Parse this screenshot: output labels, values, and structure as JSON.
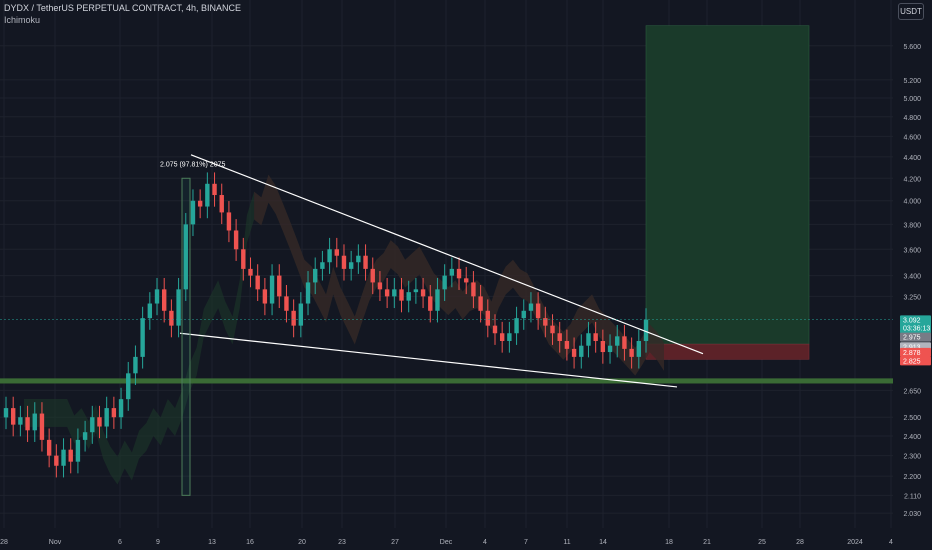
{
  "header": {
    "symbol": "DYDX / TetherUS PERPETUAL CONTRACT, 4h, BINANCE",
    "indicator": "Ichimoku",
    "currency": "USDT"
  },
  "colors": {
    "bg": "#131722",
    "up": "#26a69a",
    "down": "#ef5350",
    "grid": "#1e222d",
    "text": "#b2b5be",
    "support": "#3a6b35",
    "target": "#1a3a2a",
    "stop": "#5c2228",
    "cloudGreen": "#1d3a2a",
    "cloudRed": "#4a2026"
  },
  "chart_data": {
    "type": "candlestick",
    "y_scale": "log",
    "ylim": [
      2.0,
      6.0
    ],
    "y_ticks": [
      "5.600",
      "5.200",
      "5.000",
      "4.800",
      "4.600",
      "4.400",
      "4.200",
      "4.000",
      "3.800",
      "3.600",
      "3.400",
      "3.250",
      "2.650",
      "2.500",
      "2.400",
      "2.300",
      "2.200",
      "2.110",
      "2.030"
    ],
    "x_ticks": [
      "28",
      "Nov",
      "6",
      "9",
      "13",
      "16",
      "20",
      "23",
      "27",
      "Dec",
      "4",
      "7",
      "11",
      "14",
      "18",
      "21",
      "25",
      "28",
      "2024",
      "4"
    ],
    "price_labels": [
      {
        "text": "3.092",
        "sub": "03:36:13",
        "color": "#26a69a"
      },
      {
        "text": "2.975",
        "color": "#787b86"
      },
      {
        "text": "2.913",
        "color": "#b2b5be"
      },
      {
        "text": "2.878",
        "color": "#ef5350"
      },
      {
        "text": "2.825",
        "color": "#ef5350"
      }
    ],
    "measure_label": "2.075 (97.81%) 2075",
    "measure_range": [
      2.11,
      4.2
    ],
    "falling_wedge": {
      "upper": [
        [
          "Nov 10",
          4.42
        ],
        [
          "Dec 20",
          2.87
        ]
      ],
      "lower": [
        [
          "Nov 10",
          3.0
        ],
        [
          "Dec 19",
          2.67
        ]
      ]
    },
    "support_zone": [
      2.69,
      2.72
    ],
    "position": {
      "entry": 2.93,
      "target": 5.85,
      "stop": 2.835
    },
    "price_series": [
      2.55,
      2.46,
      2.5,
      2.43,
      2.52,
      2.38,
      2.3,
      2.25,
      2.33,
      2.27,
      2.38,
      2.42,
      2.5,
      2.45,
      2.55,
      2.5,
      2.6,
      2.75,
      2.85,
      3.1,
      3.2,
      3.3,
      3.15,
      3.05,
      3.3,
      3.8,
      4.0,
      3.95,
      4.15,
      4.05,
      3.9,
      3.75,
      3.6,
      3.45,
      3.4,
      3.3,
      3.2,
      3.4,
      3.25,
      3.15,
      3.05,
      3.2,
      3.35,
      3.45,
      3.5,
      3.6,
      3.55,
      3.45,
      3.5,
      3.55,
      3.45,
      3.35,
      3.3,
      3.25,
      3.3,
      3.22,
      3.28,
      3.3,
      3.25,
      3.15,
      3.3,
      3.4,
      3.45,
      3.38,
      3.35,
      3.25,
      3.15,
      3.05,
      3.0,
      2.95,
      3.0,
      3.1,
      3.15,
      3.2,
      3.1,
      3.05,
      3.0,
      2.95,
      2.9,
      2.85,
      2.92,
      3.0,
      2.95,
      2.88,
      2.92,
      2.98,
      2.9,
      2.85,
      2.95,
      3.09
    ]
  }
}
